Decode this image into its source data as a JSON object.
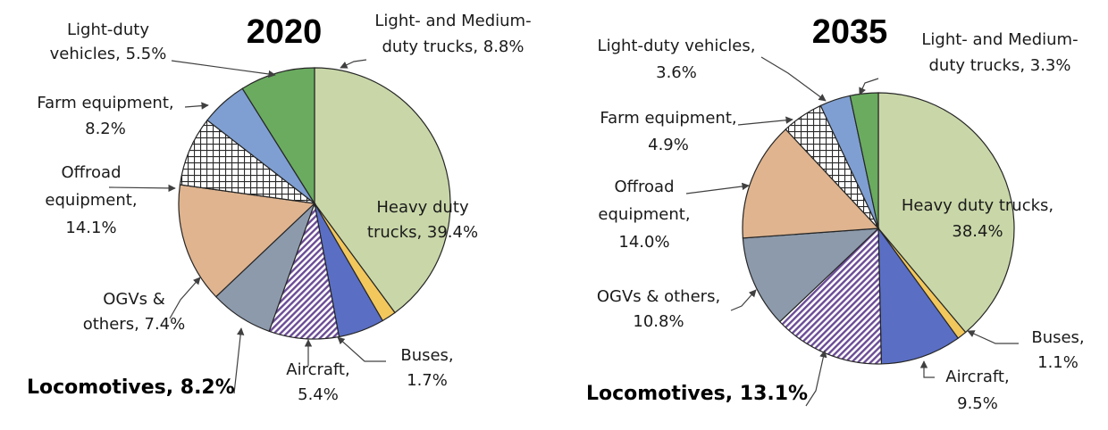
{
  "colors": {
    "heavy": "#c9d7a8",
    "buses": "#f2c75c",
    "aircraft": "#5a6ec4",
    "ogv": "#8c9aac",
    "offroad": "#dfb48f",
    "light_medium_trucks": "#6aab60",
    "light_duty": "#7f9fd2",
    "locomotive_stripe": "#6b4c96",
    "farm_grid": "#2a2a2a"
  },
  "chart_data": [
    {
      "type": "pie",
      "title": "2020",
      "slices": [
        {
          "key": "heavy",
          "label": [
            "Heavy duty",
            "trucks, 39.4%"
          ],
          "value": 39.4,
          "fill": "solid",
          "color_key": "heavy"
        },
        {
          "key": "buses",
          "label": [
            "Buses,",
            "1.7%"
          ],
          "value": 1.7,
          "fill": "solid",
          "color_key": "buses"
        },
        {
          "key": "aircraft",
          "label": [
            "Aircraft,",
            "5.4%"
          ],
          "value": 5.4,
          "fill": "solid",
          "color_key": "aircraft"
        },
        {
          "key": "locomotives",
          "label": [
            "Locomotives, 8.2%"
          ],
          "value": 8.2,
          "fill": "stripes",
          "color_key": "locomotive_stripe",
          "bold": true
        },
        {
          "key": "ogv",
          "label": [
            "OGVs &",
            "others, 7.4%"
          ],
          "value": 7.4,
          "fill": "solid",
          "color_key": "ogv"
        },
        {
          "key": "offroad",
          "label": [
            "Offroad",
            "equipment,",
            "14.1%"
          ],
          "value": 14.1,
          "fill": "solid",
          "color_key": "offroad"
        },
        {
          "key": "farm",
          "label": [
            "Farm equipment,",
            "8.2%"
          ],
          "value": 8.2,
          "fill": "grid",
          "color_key": "farm_grid"
        },
        {
          "key": "light_duty",
          "label": [
            "Light-duty",
            "vehicles, 5.5%"
          ],
          "value": 5.5,
          "fill": "solid",
          "color_key": "light_duty"
        },
        {
          "key": "light_medium_trucks",
          "label": [
            "Light- and Medium-",
            "duty trucks, 8.8%"
          ],
          "value": 8.8,
          "fill": "solid",
          "color_key": "light_medium_trucks"
        }
      ]
    },
    {
      "type": "pie",
      "title": "2035",
      "slices": [
        {
          "key": "heavy",
          "label": [
            "Heavy duty trucks,",
            "38.4%"
          ],
          "value": 38.4,
          "fill": "solid",
          "color_key": "heavy"
        },
        {
          "key": "buses",
          "label": [
            "Buses,",
            "1.1%"
          ],
          "value": 1.1,
          "fill": "solid",
          "color_key": "buses"
        },
        {
          "key": "aircraft",
          "label": [
            "Aircraft,",
            "9.5%"
          ],
          "value": 9.5,
          "fill": "solid",
          "color_key": "aircraft"
        },
        {
          "key": "locomotives",
          "label": [
            "Locomotives, 13.1%"
          ],
          "value": 13.1,
          "fill": "stripes",
          "color_key": "locomotive_stripe",
          "bold": true
        },
        {
          "key": "ogv",
          "label": [
            "OGVs & others,",
            "10.8%"
          ],
          "value": 10.8,
          "fill": "solid",
          "color_key": "ogv"
        },
        {
          "key": "offroad",
          "label": [
            "Offroad",
            "equipment,",
            "14.0%"
          ],
          "value": 14.0,
          "fill": "solid",
          "color_key": "offroad"
        },
        {
          "key": "farm",
          "label": [
            "Farm equipment,",
            "4.9%"
          ],
          "value": 4.9,
          "fill": "grid",
          "color_key": "farm_grid"
        },
        {
          "key": "light_duty",
          "label": [
            "Light-duty vehicles,",
            "3.6%"
          ],
          "value": 3.6,
          "fill": "solid",
          "color_key": "light_duty"
        },
        {
          "key": "light_medium_trucks",
          "label": [
            "Light- and Medium-",
            "duty trucks, 3.3%"
          ],
          "value": 3.3,
          "fill": "solid",
          "color_key": "light_medium_trucks"
        }
      ]
    }
  ]
}
